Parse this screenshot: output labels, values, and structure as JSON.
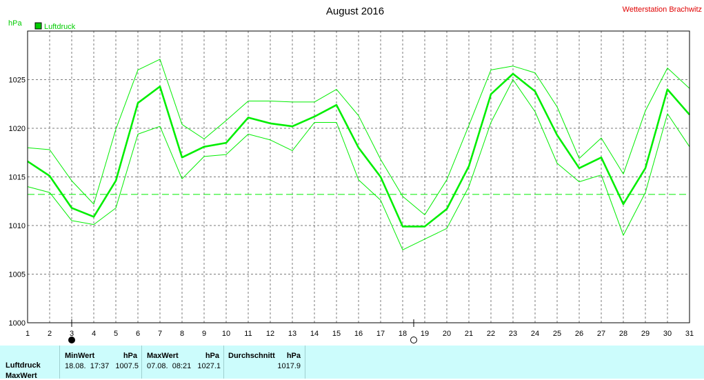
{
  "chart_data": {
    "type": "line",
    "title": "August 2016",
    "station": "Wetterstation Brachwitz",
    "ylabel": "hPa",
    "legend": "Luftdruck",
    "legend_color": "#00cc00",
    "line_color": "#00ee00",
    "reference_line": 1013.2,
    "ylim": [
      1000,
      1030
    ],
    "yticks": [
      1000,
      1005,
      1010,
      1015,
      1020,
      1025
    ],
    "x": [
      1,
      2,
      3,
      4,
      5,
      6,
      7,
      8,
      9,
      10,
      11,
      12,
      13,
      14,
      15,
      16,
      17,
      18,
      19,
      20,
      21,
      22,
      23,
      24,
      25,
      26,
      27,
      28,
      29,
      30,
      31
    ],
    "series": [
      {
        "values": [
          1016.6,
          1015.1,
          1011.8,
          1010.9,
          1014.6,
          1022.6,
          1024.3,
          1017.0,
          1018.1,
          1018.5,
          1021.1,
          1020.5,
          1020.2,
          1021.2,
          1022.4,
          1018.0,
          1015.0,
          1009.9,
          1009.9,
          1011.7,
          1016.1,
          1023.5,
          1025.6,
          1023.8,
          1019.3,
          1015.9,
          1017.0,
          1012.2,
          1015.9,
          1024.0,
          1021.4
        ]
      },
      {
        "values": [
          1018.0,
          1017.8,
          1014.6,
          1012.2,
          1019.9,
          1026.0,
          1027.1,
          1020.4,
          1018.9,
          1020.8,
          1022.8,
          1022.8,
          1022.7,
          1022.7,
          1024.0,
          1021.3,
          1016.8,
          1013.0,
          1011.1,
          1014.7,
          1020.3,
          1026.0,
          1026.4,
          1025.7,
          1022.2,
          1016.9,
          1019.0,
          1015.3,
          1021.8,
          1026.2,
          1024.1
        ]
      },
      {
        "values": [
          1014.0,
          1013.4,
          1010.5,
          1010.1,
          1011.8,
          1019.4,
          1020.2,
          1014.8,
          1017.1,
          1017.3,
          1019.4,
          1018.8,
          1017.7,
          1020.6,
          1020.6,
          1014.7,
          1012.6,
          1007.5,
          1008.6,
          1009.7,
          1014.0,
          1020.6,
          1025.0,
          1021.7,
          1016.4,
          1014.5,
          1015.2,
          1009.0,
          1013.4,
          1021.5,
          1018.1
        ]
      }
    ],
    "moon_markers": [
      {
        "day": 3,
        "phase": "new-moon"
      },
      {
        "day": 18.5,
        "phase": "full-moon"
      }
    ],
    "grid": true
  },
  "stats": {
    "row1_label": "Luftdruck",
    "row2_label": "MaxWert",
    "min_header": "MinWert",
    "min_unit": "hPa",
    "min_time": "18.08.  17:37",
    "min_value": "1007.5",
    "max_header": "MaxWert",
    "max_unit": "hPa",
    "max_time": "07.08.  08:21",
    "max_value": "1027.1",
    "avg_header": "Durchschnitt",
    "avg_unit": "hPa",
    "avg_value": "1017.9"
  }
}
